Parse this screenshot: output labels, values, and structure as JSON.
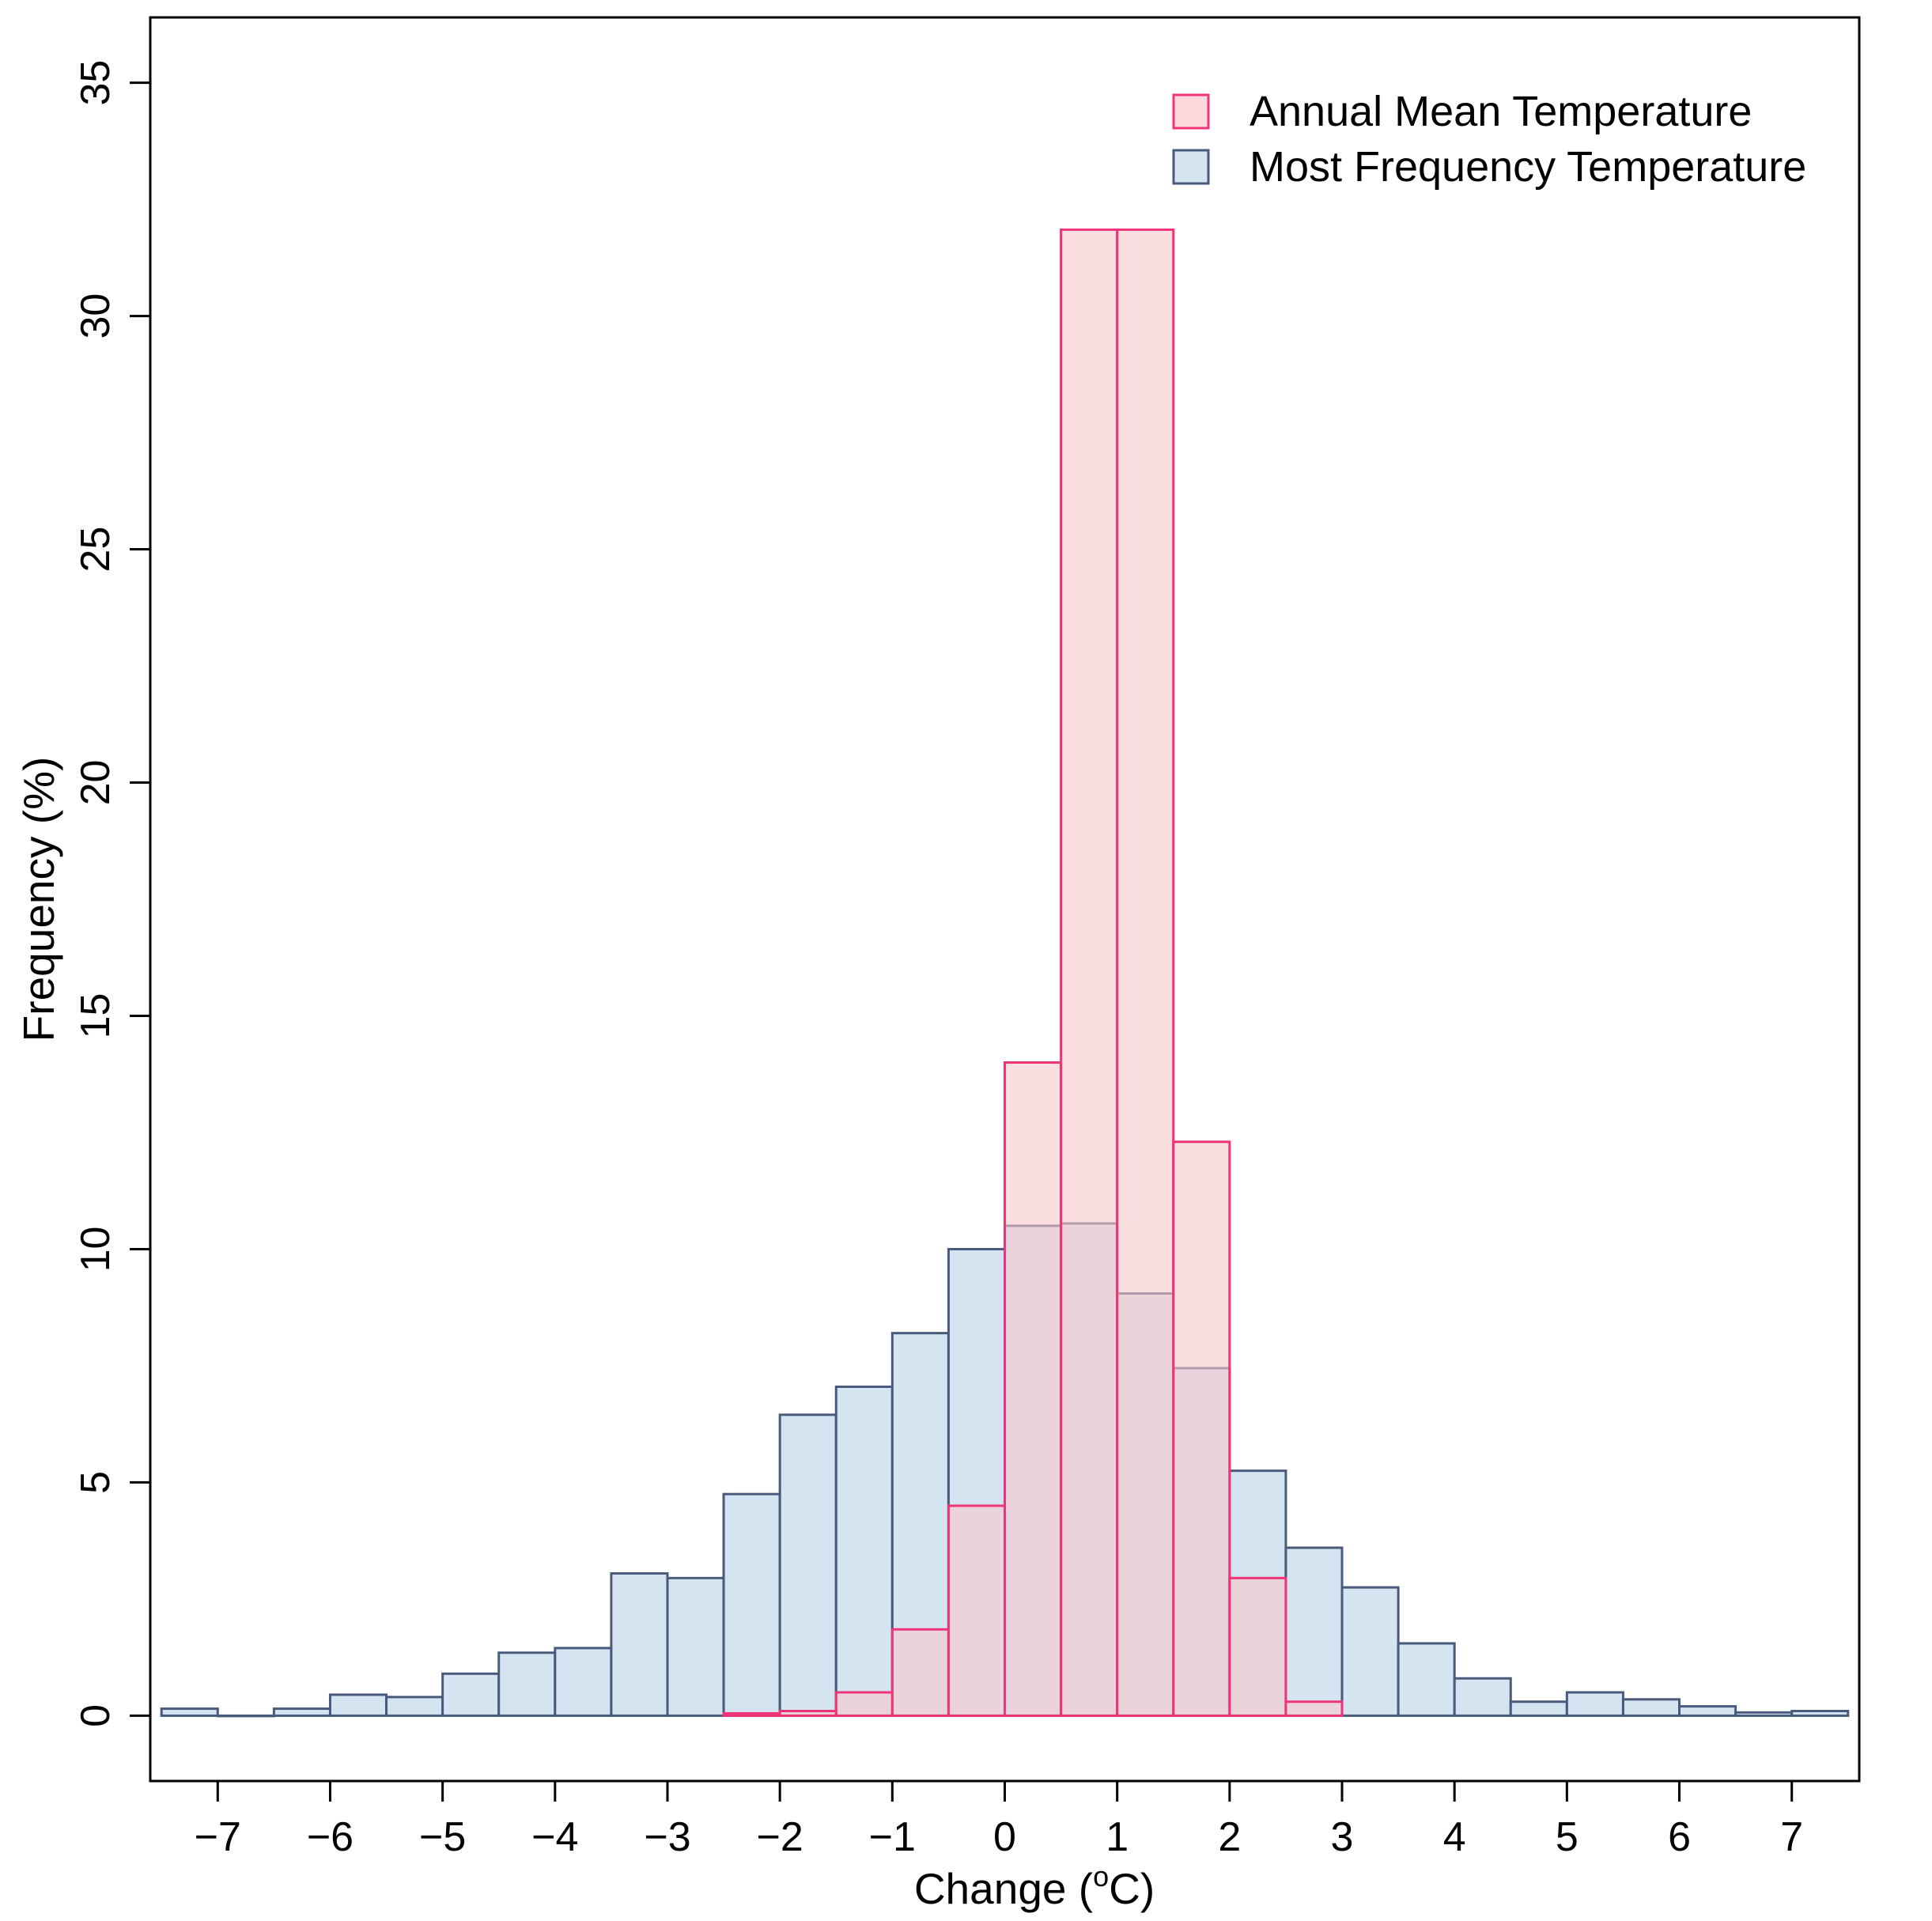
{
  "chart_data": {
    "type": "bar",
    "subtype": "overlaid-histogram",
    "title": "",
    "xlabel": "Change (",
    "xlabel_unit_sup": "o",
    "xlabel_unit_tail": "C)",
    "ylabel": "Frequency (%)",
    "xlim": [
      -7.6,
      7.6
    ],
    "ylim": [
      -1.4,
      36.4
    ],
    "x_ticks": [
      -7,
      -6,
      -5,
      -4,
      -3,
      -2,
      -1,
      0,
      1,
      2,
      3,
      4,
      5,
      6,
      7
    ],
    "x_tick_labels": [
      "−7",
      "−6",
      "−5",
      "−4",
      "−3",
      "−2",
      "−1",
      "0",
      "1",
      "2",
      "3",
      "4",
      "5",
      "6",
      "7"
    ],
    "y_ticks": [
      0,
      5,
      10,
      15,
      20,
      25,
      30,
      35
    ],
    "y_tick_labels": [
      "0",
      "5",
      "10",
      "15",
      "20",
      "25",
      "30",
      "35"
    ],
    "legend_position": "top-right",
    "series": [
      {
        "name": "Most Frequency Temperature",
        "fill": "#d4e4f0",
        "stroke": "#4a5a7c",
        "bin_width": 0.5,
        "bin_starts": [
          -7.5,
          -7.0,
          -6.5,
          -6.0,
          -5.5,
          -5.0,
          -4.5,
          -4.0,
          -3.5,
          -3.0,
          -2.5,
          -2.0,
          -1.5,
          -1.0,
          -0.5,
          0.0,
          0.5,
          1.0,
          1.5,
          2.0,
          2.5,
          3.0,
          3.5,
          4.0,
          4.5,
          5.0,
          5.5,
          6.0,
          6.5,
          7.0
        ],
        "values": [
          0.15,
          0.0,
          0.15,
          0.45,
          0.4,
          0.9,
          1.35,
          1.45,
          3.05,
          2.95,
          4.75,
          6.45,
          7.05,
          8.2,
          10.0,
          10.5,
          10.55,
          9.05,
          7.45,
          5.25,
          3.6,
          2.75,
          1.55,
          0.8,
          0.3,
          0.5,
          0.35,
          0.2,
          0.07,
          0.1
        ]
      },
      {
        "name": "Annual Mean Temperature",
        "fill": "#f8c8cc",
        "stroke": "#f0347a",
        "bin_width": 0.5,
        "bin_starts": [
          -2.5,
          -2.0,
          -1.5,
          -1.0,
          -0.5,
          0.0,
          0.5,
          1.0,
          1.5,
          2.0,
          2.5
        ],
        "values": [
          0.05,
          0.1,
          0.5,
          1.85,
          4.5,
          14.0,
          31.85,
          31.85,
          12.3,
          2.95,
          0.3
        ]
      }
    ],
    "legend": [
      {
        "label": "Annual Mean Temperature",
        "fill": "#fdd9dc",
        "stroke": "#f0347a"
      },
      {
        "label": "Most Frequency Temperature",
        "fill": "#d4e4f0",
        "stroke": "#4a5a7c"
      }
    ]
  }
}
